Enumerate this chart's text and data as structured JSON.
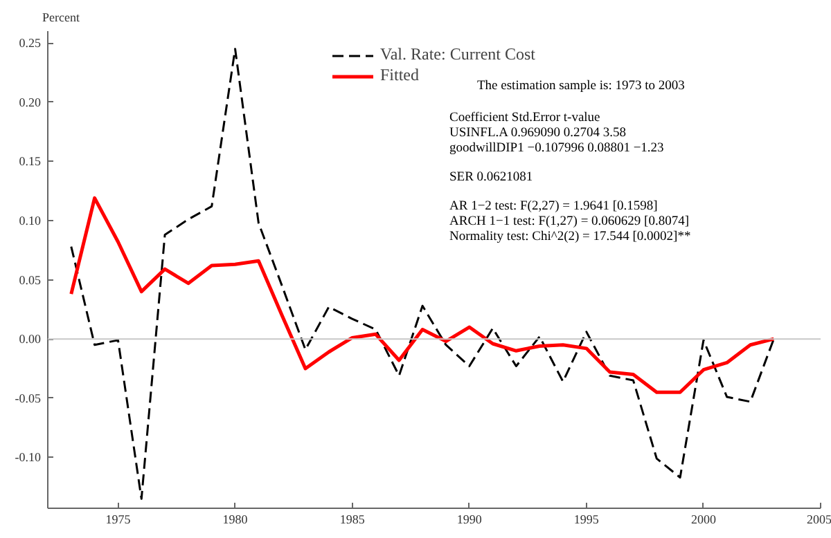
{
  "chart_data": {
    "type": "line",
    "ylabel": "Percent",
    "x": [
      1973,
      1974,
      1975,
      1976,
      1977,
      1978,
      1979,
      1980,
      1981,
      1982,
      1983,
      1984,
      1985,
      1986,
      1987,
      1988,
      1989,
      1990,
      1991,
      1992,
      1993,
      1994,
      1995,
      1996,
      1997,
      1998,
      1999,
      2000,
      2001,
      2002,
      2003
    ],
    "series": [
      {
        "name": "Val. Rate: Current Cost",
        "color": "#000000",
        "line_style": "dashed",
        "values": [
          0.078,
          -0.005,
          -0.001,
          -0.135,
          0.088,
          0.101,
          0.112,
          0.245,
          0.098,
          0.045,
          -0.009,
          0.027,
          0.017,
          0.008,
          -0.031,
          0.028,
          -0.005,
          -0.023,
          0.009,
          -0.023,
          0.002,
          -0.036,
          0.006,
          -0.031,
          -0.035,
          -0.101,
          -0.117,
          -0.001,
          -0.049,
          -0.053,
          0.0
        ]
      },
      {
        "name": "Fitted",
        "color": "#ff0000",
        "line_style": "solid",
        "values": [
          0.038,
          0.119,
          0.082,
          0.04,
          0.059,
          0.047,
          0.062,
          0.063,
          0.066,
          0.02,
          -0.025,
          -0.011,
          0.001,
          0.004,
          -0.018,
          0.008,
          -0.002,
          0.01,
          -0.004,
          -0.01,
          -0.006,
          -0.005,
          -0.008,
          -0.028,
          -0.03,
          -0.045,
          -0.045,
          -0.026,
          -0.02,
          -0.005,
          0.0
        ]
      }
    ],
    "xlim": [
      1972,
      2005
    ],
    "xticks": [
      1975,
      1980,
      1985,
      1990,
      1995,
      2000,
      2005
    ],
    "ylim": [
      -0.143,
      0.26
    ],
    "yticks": [
      {
        "value": -0.1,
        "label": "-0.10"
      },
      {
        "value": -0.05,
        "label": "-0.05"
      },
      {
        "value": 0,
        "label": "0.00"
      },
      {
        "value": 0.05,
        "label": "0.05"
      },
      {
        "value": 0.1,
        "label": "0.10"
      },
      {
        "value": 0.15,
        "label": "0.15"
      },
      {
        "value": 0.2,
        "label": "0.20"
      },
      {
        "value": 0.25,
        "label": "0.25"
      }
    ],
    "ref_lines": [
      {
        "axis": "y",
        "value": 0,
        "color": "#c8c8c8"
      }
    ],
    "grid": false,
    "legend": "top",
    "marker": "none",
    "annotations": [
      "The estimation sample is: 1973 to 2003",
      "                              Coefficient  Std.Error  t-value",
      "USINFL.A                0.969090     0.2704     3.58",
      "goodwillDIP1         −0.107996   0.08801    −1.23",
      "SER     0.0621081",
      "AR 1−2 test:       F(2,27)  =   1.9641 [0.1598]",
      "ARCH 1−1 test:    F(1,27)  = 0.060629 [0.8074]",
      "Normality test:   Chi^2(2) =   17.544 [0.0002]**"
    ]
  }
}
